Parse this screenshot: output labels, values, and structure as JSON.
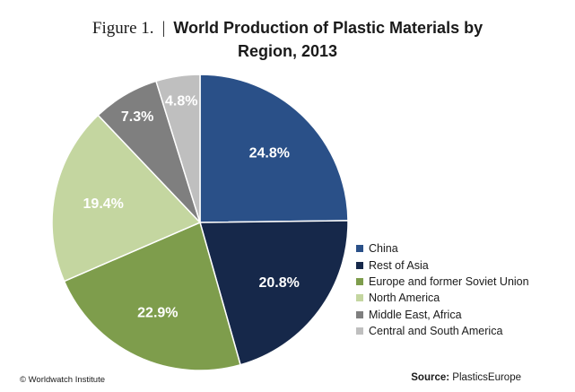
{
  "title": {
    "figure_label": "Figure 1.",
    "separator": "|",
    "main_line1": "World Production of Plastic Materials by",
    "main_line2": "Region, 2013"
  },
  "chart_data": {
    "type": "pie",
    "title": "World Production of Plastic Materials by Region, 2013",
    "start_angle_deg": 0,
    "direction": "clockwise",
    "legend_position": "right",
    "slices": [
      {
        "label": "China",
        "value": 24.8,
        "value_label": "24.8%",
        "color": "#2a5088",
        "text_color": "#ffffff"
      },
      {
        "label": "Rest of Asia",
        "value": 20.8,
        "value_label": "20.8%",
        "color": "#16284a",
        "text_color": "#ffffff"
      },
      {
        "label": "Europe and former Soviet Union",
        "value": 22.9,
        "value_label": "22.9%",
        "color": "#7e9d4c",
        "text_color": "#ffffff"
      },
      {
        "label": "North America",
        "value": 19.4,
        "value_label": "19.4%",
        "color": "#c4d6a0",
        "text_color": "#ffffff"
      },
      {
        "label": "Middle East, Africa",
        "value": 7.3,
        "value_label": "7.3%",
        "color": "#7f7f7f",
        "text_color": "#ffffff"
      },
      {
        "label": "Central and South America",
        "value": 4.8,
        "value_label": "4.8%",
        "color": "#bfbfbf",
        "text_color": "#ffffff"
      }
    ]
  },
  "footer": {
    "credit": "© Worldwatch Institute",
    "source_label": "Source:",
    "source_value": "PlasticsEurope"
  }
}
